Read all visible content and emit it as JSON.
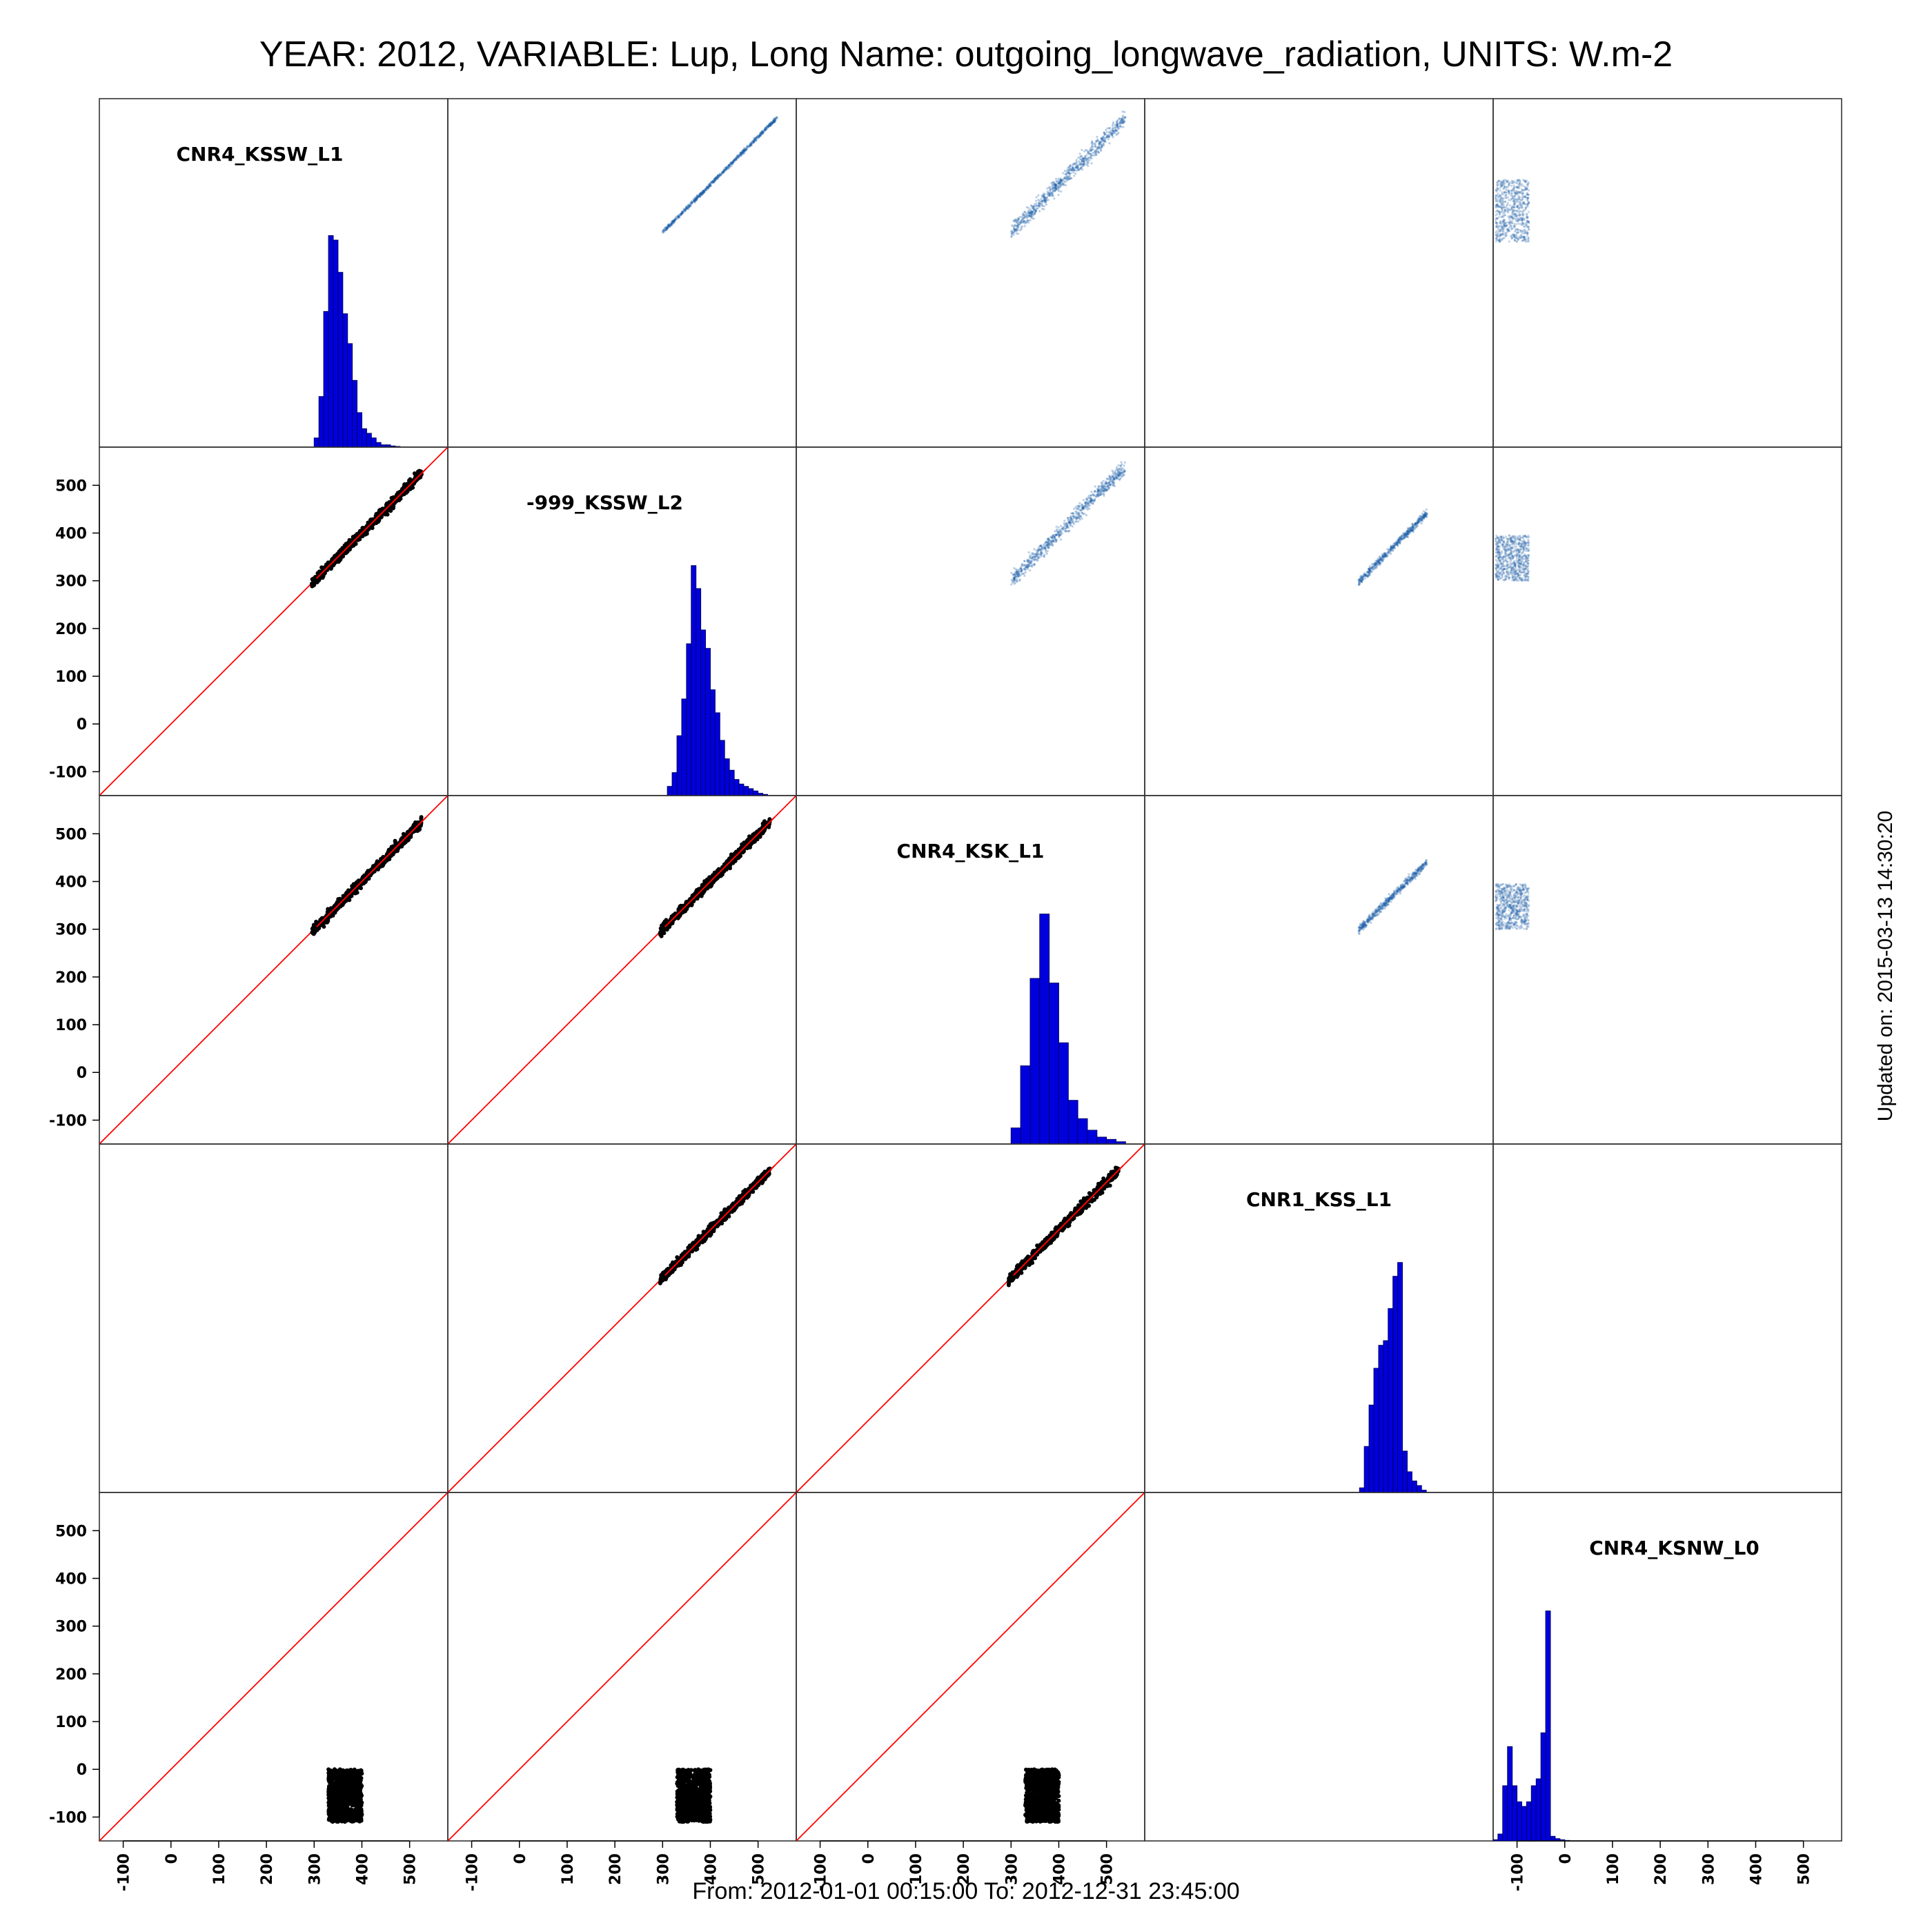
{
  "title": "YEAR: 2012, VARIABLE: Lup, Long Name: outgoing_longwave_radiation, UNITS: W.m-2",
  "footer": "From: 2012-01-01 00:15:00 To: 2012-12-31 23:45:00",
  "updated": "Updated on: 2015-03-13 14:30:20",
  "colors": {
    "histogram_fill": "#0000dd",
    "histogram_edge": "#000066",
    "identity_line": "#ff0000",
    "lower_points": "#000000",
    "upper_points": "#1f5fa8"
  },
  "chart_data": {
    "type": "scatter",
    "layout": "scatterplot-matrix",
    "variables": [
      "CNR4_KSSW_L1",
      "-999_KSSW_L2",
      "CNR4_KSK_L1",
      "CNR1_KSS_L1",
      "CNR4_KSNW_L0"
    ],
    "axis_range": [
      -150,
      580
    ],
    "ticks": [
      -100,
      0,
      100,
      200,
      300,
      400,
      500
    ],
    "tick_labels": [
      "-100",
      "0",
      "100",
      "200",
      "300",
      "400",
      "500"
    ],
    "y_tick_rows": [
      1,
      2,
      4
    ],
    "x_tick_columns": [
      0,
      1,
      2,
      4
    ],
    "diagonal": "histogram",
    "lower_triangle": "scatter with red 1:1 line",
    "upper_triangle": "density scatter",
    "histograms": [
      {
        "variable": "CNR4_KSSW_L1",
        "bins_left": [
          300,
          310,
          320,
          330,
          340,
          350,
          360,
          370,
          380,
          390,
          400,
          410,
          420,
          430,
          440,
          450,
          460,
          470
        ],
        "heights": [
          0.04,
          0.22,
          0.59,
          0.92,
          0.9,
          0.76,
          0.58,
          0.45,
          0.29,
          0.15,
          0.08,
          0.06,
          0.04,
          0.02,
          0.01,
          0.01,
          0.005,
          0.003
        ]
      },
      {
        "variable": "-999_KSSW_L2",
        "bins_left": [
          310,
          320,
          330,
          340,
          350,
          360,
          370,
          380,
          390,
          400,
          410,
          420,
          430,
          440,
          450,
          460,
          470,
          480,
          490,
          500,
          510
        ],
        "heights": [
          0.04,
          0.1,
          0.26,
          0.42,
          0.66,
          1.0,
          0.9,
          0.72,
          0.64,
          0.46,
          0.36,
          0.24,
          0.16,
          0.11,
          0.07,
          0.05,
          0.04,
          0.03,
          0.02,
          0.01,
          0.005
        ]
      },
      {
        "variable": "CNR4_KSK_L1",
        "bins_left": [
          300,
          320,
          340,
          360,
          380,
          400,
          420,
          440,
          460,
          480,
          500,
          520
        ],
        "heights": [
          0.07,
          0.34,
          0.72,
          1.0,
          0.7,
          0.44,
          0.19,
          0.11,
          0.06,
          0.03,
          0.02,
          0.01
        ]
      },
      {
        "variable": "CNR1_KSS_L1",
        "bins_left": [
          300,
          310,
          320,
          330,
          340,
          350,
          360,
          370,
          380,
          390,
          400,
          410,
          420,
          430
        ],
        "heights": [
          0.02,
          0.2,
          0.38,
          0.54,
          0.64,
          0.66,
          0.8,
          0.94,
          1.0,
          0.18,
          0.09,
          0.05,
          0.03,
          0.01
        ]
      },
      {
        "variable": "CNR4_KSNW_L0",
        "bins_left": [
          -150,
          -140,
          -130,
          -120,
          -110,
          -100,
          -90,
          -80,
          -70,
          -60,
          -50,
          -40,
          -30,
          -20,
          -10,
          0
        ],
        "heights": [
          0.005,
          0.03,
          0.24,
          0.41,
          0.24,
          0.17,
          0.15,
          0.17,
          0.24,
          0.27,
          0.47,
          1.0,
          0.02,
          0.01,
          0.005,
          0.002
        ]
      }
    ]
  }
}
